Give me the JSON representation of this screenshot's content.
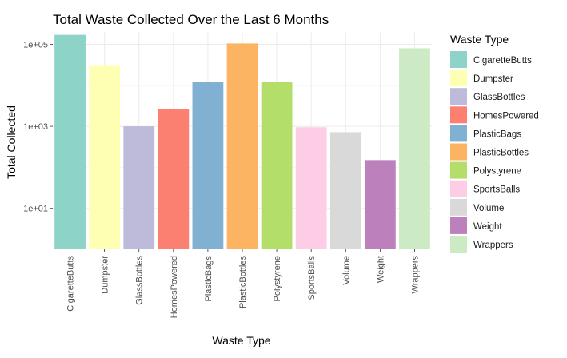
{
  "chart_data": {
    "type": "bar",
    "title": "Total Waste Collected Over the Last 6 Months",
    "xlabel": "Waste Type",
    "ylabel": "Total Collected",
    "yscale": "log10",
    "ylim": [
      1,
      200000
    ],
    "yticks": [
      {
        "value": 10,
        "label": "1e+01"
      },
      {
        "value": 1000,
        "label": "1e+03"
      },
      {
        "value": 100000,
        "label": "1e+05"
      }
    ],
    "grid": true,
    "legend_position": "right",
    "legend_title": "Waste Type",
    "categories": [
      "CigaretteButts",
      "Dumpster",
      "GlassBottles",
      "HomesPowered",
      "PlasticBags",
      "PlasticBottles",
      "Polystyrene",
      "SportsBalls",
      "Volume",
      "Weight",
      "Wrappers"
    ],
    "values": [
      170000,
      31000,
      1000,
      2600,
      12000,
      105000,
      12000,
      950,
      720,
      150,
      80000
    ],
    "colors": [
      "#8DD3C7",
      "#FFFFB3",
      "#BEBADA",
      "#FB8072",
      "#80B1D3",
      "#FDB462",
      "#B3DE69",
      "#FCCDE5",
      "#D9D9D9",
      "#BC80BD",
      "#CCEBC5"
    ]
  }
}
